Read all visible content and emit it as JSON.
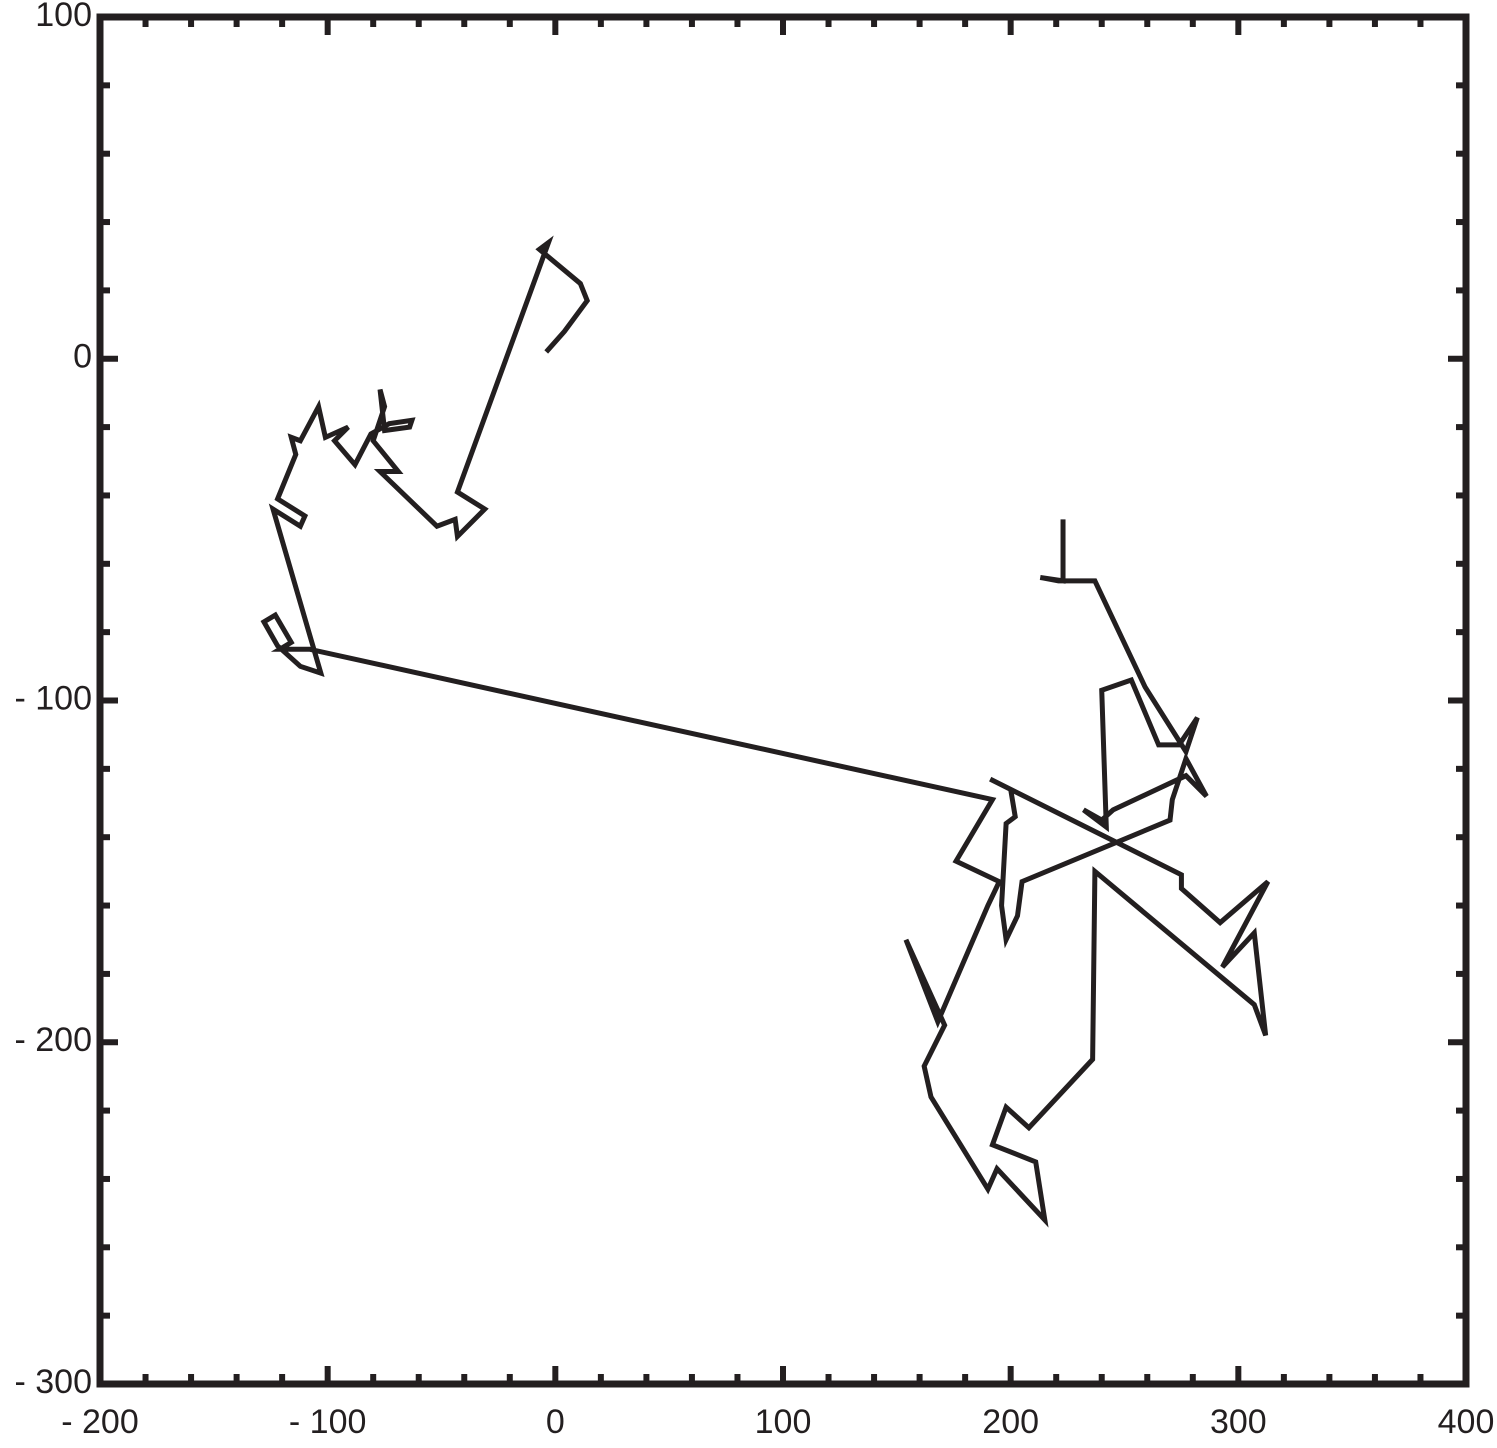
{
  "chart_data": {
    "type": "line",
    "x": [
      -4,
      4,
      14,
      11,
      -7,
      -3,
      -43,
      -31,
      -43,
      -44,
      -52,
      -77,
      -69,
      -80,
      -75,
      -77,
      -75,
      -64,
      -63,
      -73,
      -81,
      -88,
      -97,
      -91,
      -101,
      -104,
      -112,
      -116,
      -114,
      -122,
      -110,
      -112,
      -124,
      -103,
      -112,
      -122,
      -128,
      -123,
      -116,
      -121,
      -108,
      192,
      176,
      195,
      190,
      168,
      154,
      171,
      162,
      165,
      178,
      190,
      194,
      215,
      211,
      192,
      198,
      208,
      236,
      237,
      307,
      312,
      307,
      293,
      313,
      292,
      275,
      275,
      191,
      200,
      202,
      198,
      196,
      198,
      203,
      205,
      270,
      271,
      277,
      286,
      277,
      245,
      240,
      232,
      242,
      240,
      253,
      265,
      274,
      282,
      277,
      259,
      237,
      221,
      213,
      223,
      223,
      223
    ],
    "series": [
      {
        "color": "#231f20",
        "values": [
          2,
          8,
          17,
          22,
          32,
          34,
          -39,
          -44,
          -52,
          -47,
          -49,
          -33,
          -33,
          -24,
          -14,
          -9,
          -21,
          -20,
          -18,
          -19,
          -22,
          -31,
          -24,
          -20,
          -23,
          -14,
          -24,
          -23,
          -28,
          -41,
          -46,
          -49,
          -44,
          -92,
          -90,
          -84,
          -77,
          -75,
          -83,
          -85,
          -85,
          -129,
          -147,
          -153,
          -160,
          -194,
          -170,
          -195,
          -207,
          -216,
          -230,
          -243,
          -237,
          -252,
          -235,
          -230,
          -219,
          -225,
          -205,
          -150,
          -189,
          -198,
          -168,
          -178,
          -153,
          -165,
          -155,
          -151,
          -123,
          -126,
          -134,
          -136,
          -160,
          -170,
          -163,
          -153,
          -135,
          -129,
          -117,
          -128,
          -122,
          -132,
          -135,
          -132,
          -137,
          -97,
          -94,
          -113,
          -113,
          -105,
          -115,
          -96,
          -65,
          -65,
          -64,
          -65,
          -53,
          -47
        ]
      }
    ],
    "xlim": [
      -200,
      400
    ],
    "ylim": [
      -300,
      100
    ],
    "xticks": [
      {
        "value": -200,
        "label": "- 200"
      },
      {
        "value": -100,
        "label": "- 100"
      },
      0,
      100,
      200,
      300,
      400
    ],
    "yticks": [
      {
        "value": -300,
        "label": "- 300"
      },
      {
        "value": -200,
        "label": "- 200"
      },
      {
        "value": -100,
        "label": "- 100"
      },
      0,
      100
    ],
    "xminorticks": [
      -180,
      -160,
      -140,
      -120,
      -80,
      -60,
      -40,
      -20,
      20,
      40,
      60,
      80,
      120,
      140,
      160,
      180,
      220,
      240,
      260,
      280,
      320,
      340,
      360,
      380
    ],
    "yminorticks": [
      -280,
      -260,
      -240,
      -220,
      -180,
      -160,
      -140,
      -120,
      -80,
      -60,
      -40,
      -20,
      20,
      40,
      60,
      80
    ]
  }
}
